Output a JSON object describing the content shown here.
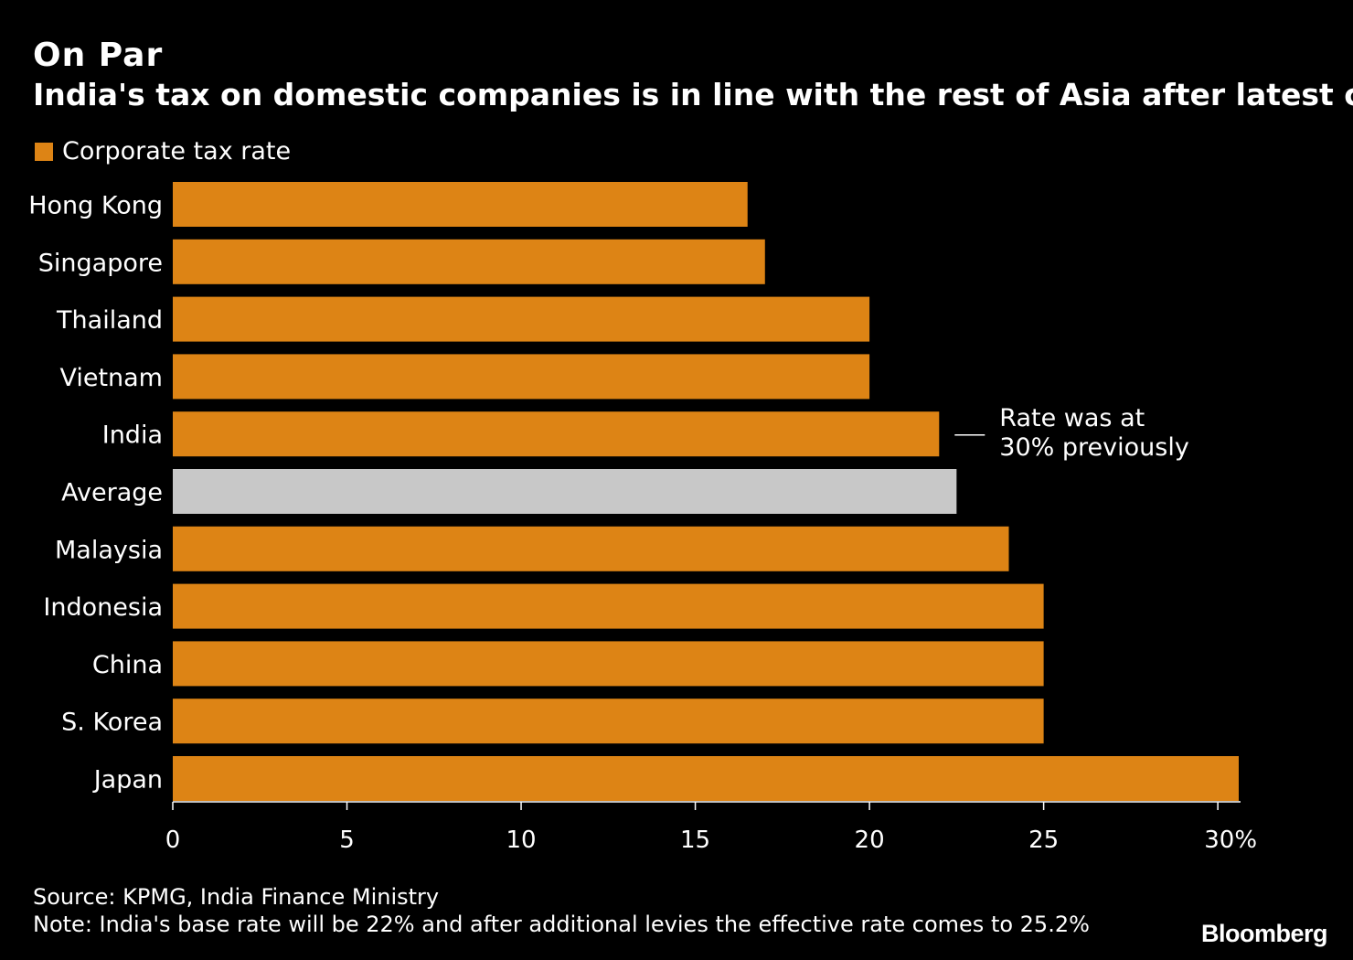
{
  "header": {
    "title": "On Par",
    "subtitle": "India's tax on domestic companies is in line with the rest of Asia after latest cut"
  },
  "colors": {
    "bar": "#dd8415",
    "highlight": "#c8c8c8",
    "background": "#000000",
    "text": "#ffffff"
  },
  "chart_data": {
    "type": "bar",
    "orientation": "horizontal",
    "categories": [
      "Hong Kong",
      "Singapore",
      "Thailand",
      "Vietnam",
      "India",
      "Average",
      "Malaysia",
      "Indonesia",
      "China",
      "S. Korea",
      "Japan"
    ],
    "series": [
      {
        "name": "Corporate tax rate",
        "values": [
          16.5,
          17,
          20,
          20,
          22,
          22.5,
          24,
          25,
          25,
          25,
          30.6
        ]
      }
    ],
    "highlight_category": "Average",
    "xlim": [
      0,
      30.6
    ],
    "xticks": [
      0,
      5,
      10,
      15,
      20,
      25,
      30
    ],
    "xtick_labels": [
      "0",
      "5",
      "10",
      "15",
      "20",
      "25",
      "30%"
    ],
    "annotation": {
      "category": "India",
      "lines": [
        "Rate was at",
        "30% previously"
      ]
    },
    "legend_position": "top-left",
    "grid": false
  },
  "footer": {
    "source": "Source: KPMG, India Finance Ministry",
    "note": "Note: India's base rate will be 22% and after additional levies the effective rate comes to 25.2%",
    "brand": "Bloomberg"
  }
}
